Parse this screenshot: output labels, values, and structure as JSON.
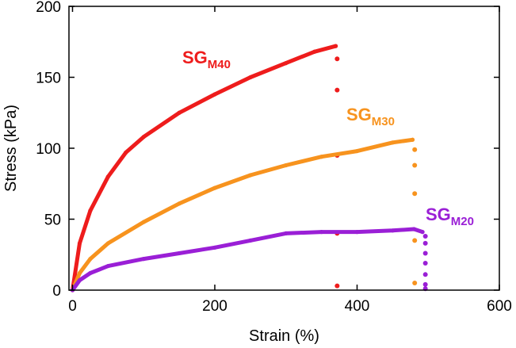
{
  "chart_data": {
    "type": "line",
    "xlabel": "Strain (%)",
    "ylabel": "Stress (kPa)",
    "xlim": [
      -5,
      600
    ],
    "ylim": [
      0,
      200
    ],
    "xticks": [
      0,
      200,
      400,
      600
    ],
    "yticks": [
      0,
      50,
      100,
      150,
      200
    ],
    "xtick_labels": [
      "0",
      "200",
      "400",
      "600"
    ],
    "ytick_labels": [
      "0",
      "50",
      "100",
      "150",
      "200"
    ],
    "grid": false,
    "series": [
      {
        "name": "SGM40",
        "label_main": "SG",
        "label_sub": "M40",
        "color": "#ee1c1c",
        "x": [
          0,
          10,
          25,
          50,
          75,
          100,
          150,
          200,
          250,
          300,
          340,
          370
        ],
        "y": [
          0,
          33,
          56,
          80,
          97,
          108,
          125,
          138,
          150,
          160,
          168,
          172
        ],
        "failure_x": 372,
        "failure_y": [
          163,
          141,
          95,
          40,
          3
        ]
      },
      {
        "name": "SGM30",
        "label_main": "SG",
        "label_sub": "M30",
        "color": "#f7931e",
        "x": [
          0,
          10,
          25,
          50,
          100,
          150,
          200,
          250,
          300,
          350,
          400,
          450,
          478
        ],
        "y": [
          0,
          12,
          22,
          33,
          48,
          61,
          72,
          81,
          88,
          94,
          98,
          104,
          106
        ],
        "failure_x": 481,
        "failure_y": [
          99,
          88,
          68,
          35,
          5
        ]
      },
      {
        "name": "SGM20",
        "label_main": "SG",
        "label_sub": "M20",
        "color": "#9a1fd6",
        "x": [
          0,
          10,
          25,
          50,
          100,
          150,
          200,
          250,
          300,
          350,
          400,
          450,
          480,
          492
        ],
        "y": [
          0,
          7,
          12,
          17,
          22,
          26,
          30,
          35,
          40,
          41,
          41,
          42,
          43,
          41
        ],
        "failure_x": 496,
        "failure_y": [
          38,
          33,
          26,
          19,
          11,
          4,
          1
        ]
      }
    ]
  }
}
